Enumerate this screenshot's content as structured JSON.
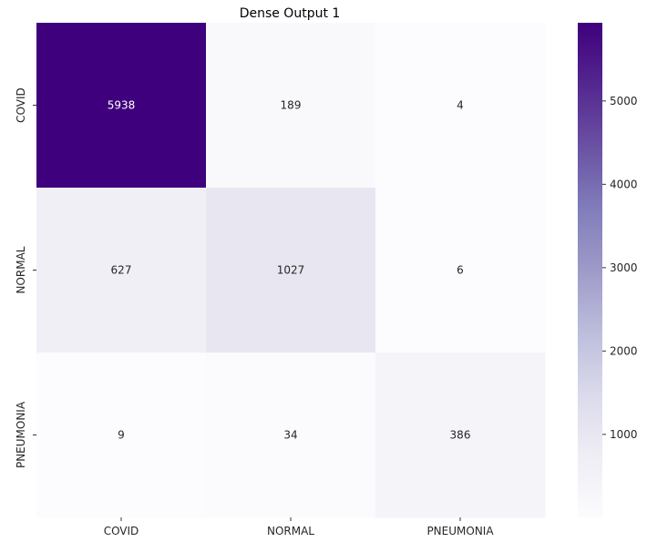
{
  "chart_data": {
    "type": "heatmap",
    "title": "Dense Output 1",
    "xlabel": "",
    "ylabel": "",
    "x_categories": [
      "COVID",
      "NORMAL",
      "PNEUMONIA"
    ],
    "y_categories": [
      "COVID",
      "NORMAL",
      "PNEUMONIA"
    ],
    "values": [
      [
        5938,
        189,
        4
      ],
      [
        627,
        1027,
        6
      ],
      [
        9,
        34,
        386
      ]
    ],
    "colormap": "Purples",
    "colorbar": {
      "min": 4,
      "max": 5938,
      "ticks": [
        1000,
        2000,
        3000,
        4000,
        5000
      ]
    },
    "annotations": true,
    "grid": false
  },
  "colors": {
    "text_dark": "#262626",
    "text_light": "#ffffff",
    "title": "#000000"
  }
}
